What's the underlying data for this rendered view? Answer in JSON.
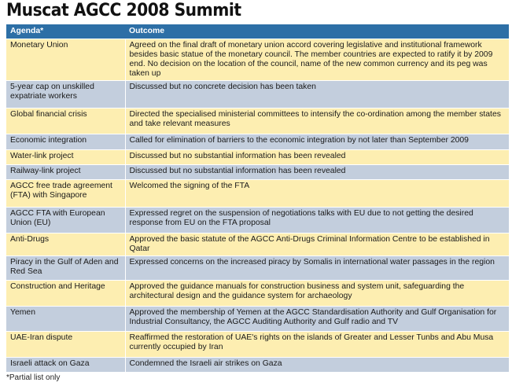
{
  "title": "Muscat AGCC 2008 Summit",
  "headers": {
    "agenda": "Agenda*",
    "outcome": "Outcome"
  },
  "rows": [
    {
      "agenda": "Monetary Union",
      "outcome": "Agreed on the final draft of monetary union accord covering legislative and institutional framework besides basic statue of the monetary council. The member countries are expected to ratify it by 2009 end. No decision on the location of the council, name of the new common currency and its peg was taken up"
    },
    {
      "agenda": "5-year cap on unskilled expatriate workers",
      "outcome": "Discussed but no concrete decision has been taken"
    },
    {
      "agenda": "Global financial crisis",
      "outcome": "Directed the specialised ministerial committees to intensify the co-ordination among the member states and take relevant measures"
    },
    {
      "agenda": "Economic integration",
      "outcome": "Called for elimination of barriers to the economic integration by not later than September 2009"
    },
    {
      "agenda": "Water-link project",
      "outcome": "Discussed but no substantial information has been revealed"
    },
    {
      "agenda": "Railway-link project",
      "outcome": "Discussed but no substantial information has been revealed"
    },
    {
      "agenda": "AGCC free trade agreement (FTA) with Singapore",
      "outcome": "Welcomed the signing of the FTA"
    },
    {
      "agenda": "AGCC FTA with European Union (EU)",
      "outcome": "Expressed regret on the suspension of negotiations talks with EU due to not getting the desired response from EU on the FTA proposal"
    },
    {
      "agenda": "Anti-Drugs",
      "outcome": "Approved the basic statute of the AGCC Anti-Drugs Criminal Information Centre to be established in Qatar"
    },
    {
      "agenda": "Piracy in the Gulf of Aden and Red Sea",
      "outcome": "Expressed concerns on the increased piracy by Somalis in international water passages in the region"
    },
    {
      "agenda": "Construction and Heritage",
      "outcome": "Approved the guidance manuals for construction business and system unit, safeguarding the architectural design and the guidance system for archaeology"
    },
    {
      "agenda": "Yemen",
      "outcome": "Approved the membership of Yemen at the AGCC Standardisation Authority and Gulf Organisation for Industrial Consultancy, the AGCC Auditing Authority and Gulf radio and TV"
    },
    {
      "agenda": "UAE-Iran dispute",
      "outcome": "Reaffirmed the restoration of UAE's rights on the islands of Greater and Lesser Tunbs and Abu Musa currently occupied by Iran"
    },
    {
      "agenda": "Israeli attack on Gaza",
      "outcome": "Condemned the Israeli air strikes on Gaza"
    }
  ],
  "footnote": "*Partial list only",
  "colors": {
    "header": "#2d6fa6",
    "row_odd": "#fdeeb1",
    "row_even": "#c3cedd"
  }
}
